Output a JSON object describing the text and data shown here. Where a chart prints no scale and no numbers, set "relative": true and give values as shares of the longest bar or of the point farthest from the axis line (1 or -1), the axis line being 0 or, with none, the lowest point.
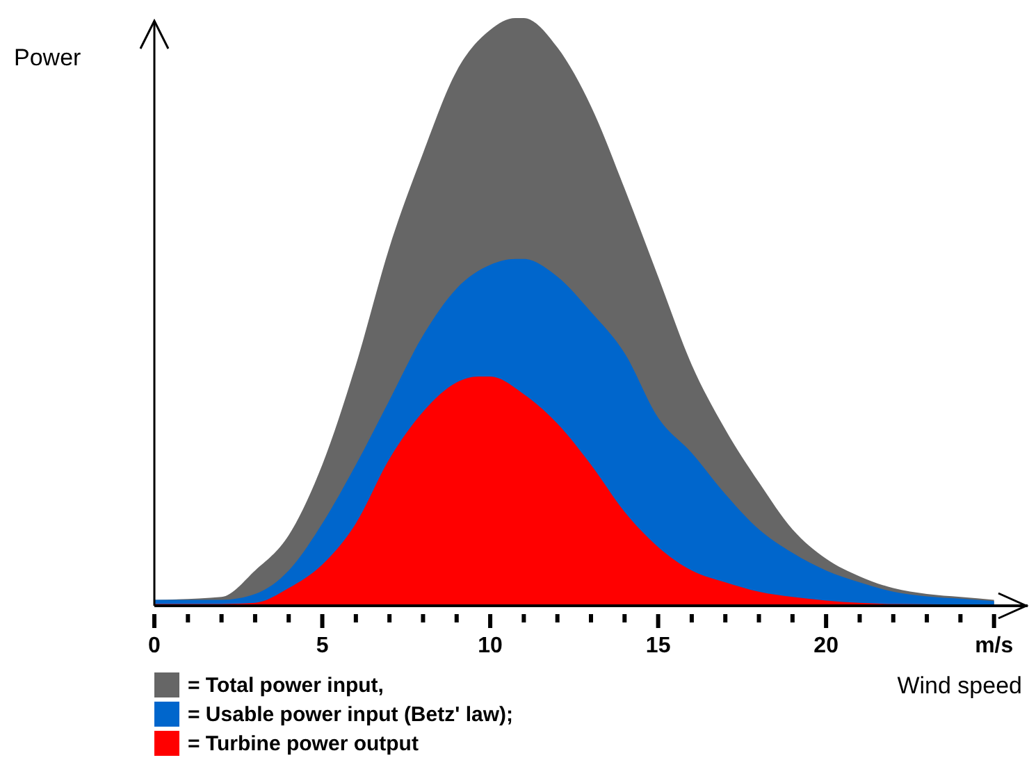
{
  "chart_data": {
    "type": "area",
    "relative": true,
    "xlabel": "Wind speed",
    "ylabel": "Power",
    "xlim": [
      0,
      26
    ],
    "xticks": [
      0,
      {
        "value": 1,
        "label": null
      },
      {
        "value": 2,
        "label": null
      },
      {
        "value": 3,
        "label": null
      },
      {
        "value": 4,
        "label": null
      },
      5,
      {
        "value": 6,
        "label": null
      },
      {
        "value": 7,
        "label": null
      },
      {
        "value": 8,
        "label": null
      },
      {
        "value": 9,
        "label": null
      },
      10,
      {
        "value": 11,
        "label": null
      },
      {
        "value": 12,
        "label": null
      },
      {
        "value": 13,
        "label": null
      },
      {
        "value": 14,
        "label": null
      },
      15,
      {
        "value": 16,
        "label": null
      },
      {
        "value": 17,
        "label": null
      },
      {
        "value": 18,
        "label": null
      },
      {
        "value": 19,
        "label": null
      },
      20,
      {
        "value": 21,
        "label": null
      },
      {
        "value": 22,
        "label": null
      },
      {
        "value": 23,
        "label": null
      },
      {
        "value": 24,
        "label": null
      },
      {
        "value": 25,
        "label": "m/s"
      }
    ],
    "legend": "bottom left",
    "series": [
      {
        "name": "= Total power input,",
        "color": "#666666",
        "x": [
          0,
          2,
          3,
          4,
          5,
          6,
          7,
          8,
          9,
          10,
          10.75,
          11,
          12,
          13,
          14,
          15,
          16,
          17,
          18,
          19,
          20,
          21,
          22,
          23,
          24,
          25
        ],
        "values": [
          0.01,
          0.015,
          0.06,
          0.12,
          0.24,
          0.41,
          0.61,
          0.77,
          0.91,
          0.98,
          1,
          1,
          0.95,
          0.85,
          0.71,
          0.56,
          0.41,
          0.3,
          0.21,
          0.13,
          0.08,
          0.05,
          0.03,
          0.02,
          0.015,
          0.01
        ]
      },
      {
        "name": "= Usable power input (Betz' law);",
        "color": "#0066cc",
        "x": [
          0,
          2,
          3,
          4,
          5,
          6,
          7,
          8,
          9,
          10,
          10.75,
          11,
          12,
          13,
          14,
          15,
          16,
          17,
          18,
          19,
          20,
          21,
          22,
          23,
          24,
          25
        ],
        "values": [
          0.01,
          0.01,
          0.02,
          0.06,
          0.14,
          0.24,
          0.35,
          0.46,
          0.54,
          0.58,
          0.59,
          0.59,
          0.56,
          0.5,
          0.43,
          0.32,
          0.26,
          0.19,
          0.13,
          0.09,
          0.06,
          0.04,
          0.024,
          0.016,
          0.012,
          0.008
        ]
      },
      {
        "name": "= Turbine power output",
        "color": "#ff0000",
        "x": [
          0,
          2,
          3,
          4,
          5,
          6,
          7,
          8,
          9,
          9.65,
          10,
          11,
          12,
          13,
          14,
          15,
          16,
          17,
          18,
          19,
          20,
          21,
          22,
          25
        ],
        "values": [
          0.003,
          0.003,
          0.005,
          0.03,
          0.07,
          0.14,
          0.25,
          0.33,
          0.38,
          0.39,
          0.39,
          0.36,
          0.31,
          0.24,
          0.16,
          0.1,
          0.06,
          0.04,
          0.024,
          0.015,
          0.009,
          0.005,
          0.003,
          0.002
        ]
      }
    ]
  }
}
